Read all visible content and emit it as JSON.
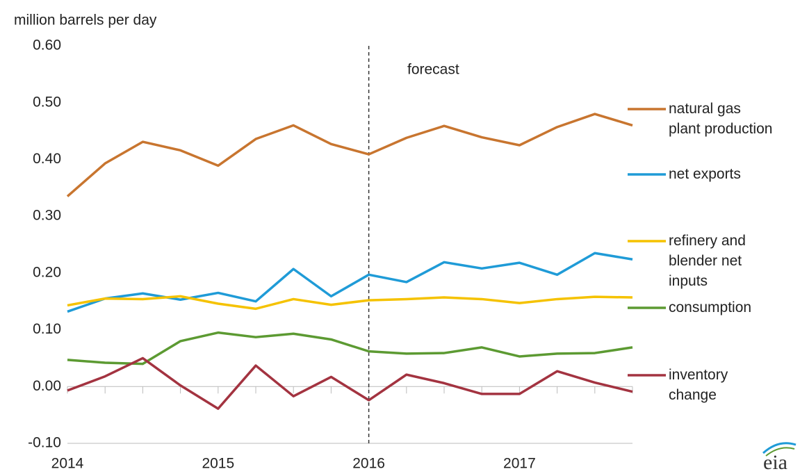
{
  "chart_data": {
    "type": "line",
    "y_label": "million barrels per day",
    "annotation": "forecast",
    "forecast_start": "2016",
    "categories": [
      "2014",
      null,
      null,
      null,
      "2015",
      null,
      null,
      null,
      "2016",
      null,
      null,
      null,
      "2017",
      null,
      null,
      null
    ],
    "ylim": [
      -0.1,
      0.6
    ],
    "yticks": [
      {
        "value": 0.6,
        "label": "0.60"
      },
      {
        "value": 0.5,
        "label": "0.50"
      },
      {
        "value": 0.4,
        "label": "0.40"
      },
      {
        "value": 0.3,
        "label": "0.30"
      },
      {
        "value": 0.2,
        "label": "0.20"
      },
      {
        "value": 0.1,
        "label": "0.10"
      },
      {
        "value": 0,
        "label": "0.00"
      },
      {
        "value": -0.1,
        "label": "-0.10"
      }
    ],
    "grid": false,
    "series": [
      {
        "name": "natural gas\nplant production",
        "color": "#c8752f",
        "values": [
          0.335,
          0.393,
          0.431,
          0.416,
          0.389,
          0.436,
          0.46,
          0.427,
          0.409,
          0.438,
          0.459,
          0.439,
          0.425,
          0.457,
          0.48,
          0.46
        ]
      },
      {
        "name": "net exports",
        "color": "#1f9bd7",
        "values": [
          0.132,
          0.155,
          0.164,
          0.153,
          0.165,
          0.15,
          0.207,
          0.159,
          0.197,
          0.184,
          0.219,
          0.208,
          0.218,
          0.197,
          0.235,
          0.224
        ]
      },
      {
        "name": "refinery and\nblender net\ninputs",
        "color": "#f5c200",
        "values": [
          0.143,
          0.155,
          0.154,
          0.159,
          0.146,
          0.137,
          0.154,
          0.144,
          0.152,
          0.154,
          0.157,
          0.154,
          0.147,
          0.154,
          0.158,
          0.157
        ]
      },
      {
        "name": "consumption",
        "color": "#5c9a32",
        "values": [
          0.047,
          0.042,
          0.04,
          0.08,
          0.095,
          0.087,
          0.093,
          0.083,
          0.062,
          0.058,
          0.059,
          0.069,
          0.053,
          0.058,
          0.059,
          0.069
        ]
      },
      {
        "name": "inventory\nchange",
        "color": "#a33340",
        "values": [
          -0.007,
          0.018,
          0.05,
          0.002,
          -0.039,
          0.037,
          -0.017,
          0.017,
          -0.024,
          0.021,
          0.006,
          -0.013,
          -0.013,
          0.027,
          0.007,
          -0.009
        ]
      }
    ]
  }
}
